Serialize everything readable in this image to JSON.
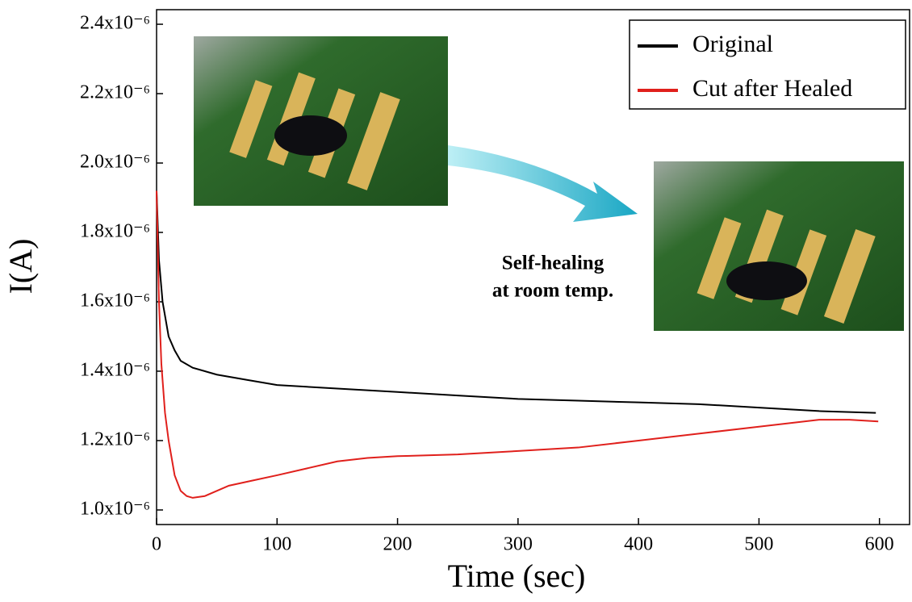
{
  "chart_data": {
    "type": "line",
    "xlabel": "Time (sec)",
    "ylabel": "I(A)",
    "xlim": [
      0,
      625
    ],
    "xticks": [
      0,
      100,
      200,
      300,
      400,
      500,
      600
    ],
    "ylim": [
      9.58e-07,
      2.442e-06
    ],
    "yticks": [
      {
        "value": 1e-06,
        "label": "1.0x10⁻⁶"
      },
      {
        "value": 1.2e-06,
        "label": "1.2x10⁻⁶"
      },
      {
        "value": 1.4e-06,
        "label": "1.4x10⁻⁶"
      },
      {
        "value": 1.6e-06,
        "label": "1.6x10⁻⁶"
      },
      {
        "value": 1.8e-06,
        "label": "1.8x10⁻⁶"
      },
      {
        "value": 2e-06,
        "label": "2.0x10⁻⁶"
      },
      {
        "value": 2.2e-06,
        "label": "2.2x10⁻⁶"
      },
      {
        "value": 2.4e-06,
        "label": "2.4x10⁻⁶"
      }
    ],
    "legend": "upper right",
    "annotations": [
      "Self-healing",
      "at room temp."
    ],
    "series": [
      {
        "name": "Original",
        "color": "#000000",
        "x": [
          0,
          2,
          5,
          10,
          15,
          20,
          30,
          50,
          75,
          100,
          150,
          200,
          250,
          300,
          350,
          400,
          450,
          500,
          550,
          597
        ],
        "values": [
          1.92e-06,
          1.72e-06,
          1.6e-06,
          1.5e-06,
          1.46e-06,
          1.43e-06,
          1.41e-06,
          1.39e-06,
          1.375e-06,
          1.36e-06,
          1.35e-06,
          1.34e-06,
          1.33e-06,
          1.32e-06,
          1.315e-06,
          1.31e-06,
          1.305e-06,
          1.295e-06,
          1.285e-06,
          1.28e-06
        ]
      },
      {
        "name": "Cut after Healed",
        "color": "#e0201c",
        "x": [
          0,
          2,
          4,
          7,
          10,
          15,
          20,
          25,
          30,
          40,
          60,
          80,
          100,
          125,
          150,
          175,
          200,
          250,
          300,
          350,
          400,
          450,
          500,
          550,
          575,
          599
        ],
        "values": [
          1.92e-06,
          1.6e-06,
          1.42e-06,
          1.28e-06,
          1.2e-06,
          1.1e-06,
          1.055e-06,
          1.04e-06,
          1.035e-06,
          1.04e-06,
          1.07e-06,
          1.085e-06,
          1.1e-06,
          1.12e-06,
          1.14e-06,
          1.15e-06,
          1.155e-06,
          1.16e-06,
          1.17e-06,
          1.18e-06,
          1.2e-06,
          1.22e-06,
          1.24e-06,
          1.26e-06,
          1.26e-06,
          1.255e-06
        ]
      }
    ]
  }
}
